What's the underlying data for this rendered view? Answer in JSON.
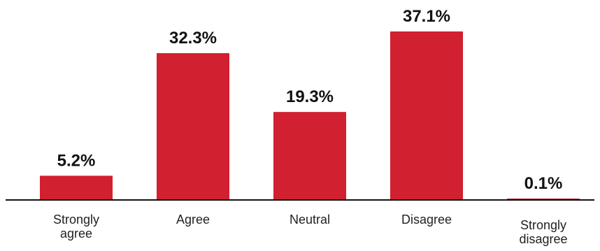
{
  "chart_data": {
    "type": "bar",
    "categories": [
      "Strongly agree",
      "Agree",
      "Neutral",
      "Disagree",
      "Strongly disagree"
    ],
    "category_lines": [
      [
        "Strongly",
        "agree"
      ],
      [
        "Agree"
      ],
      [
        "Neutral"
      ],
      [
        "Disagree"
      ],
      [
        "Strongly",
        "disagree"
      ]
    ],
    "values": [
      5.2,
      32.3,
      19.3,
      37.1,
      0.1
    ],
    "value_labels": [
      "5.2%",
      "32.3%",
      "19.3%",
      "37.1%",
      "0.1%"
    ],
    "unit": "%",
    "ylim": [
      0,
      37.1
    ],
    "grid": false,
    "legend": "none",
    "colors": {
      "bar": "#d1202f",
      "axis": "#111111"
    }
  }
}
